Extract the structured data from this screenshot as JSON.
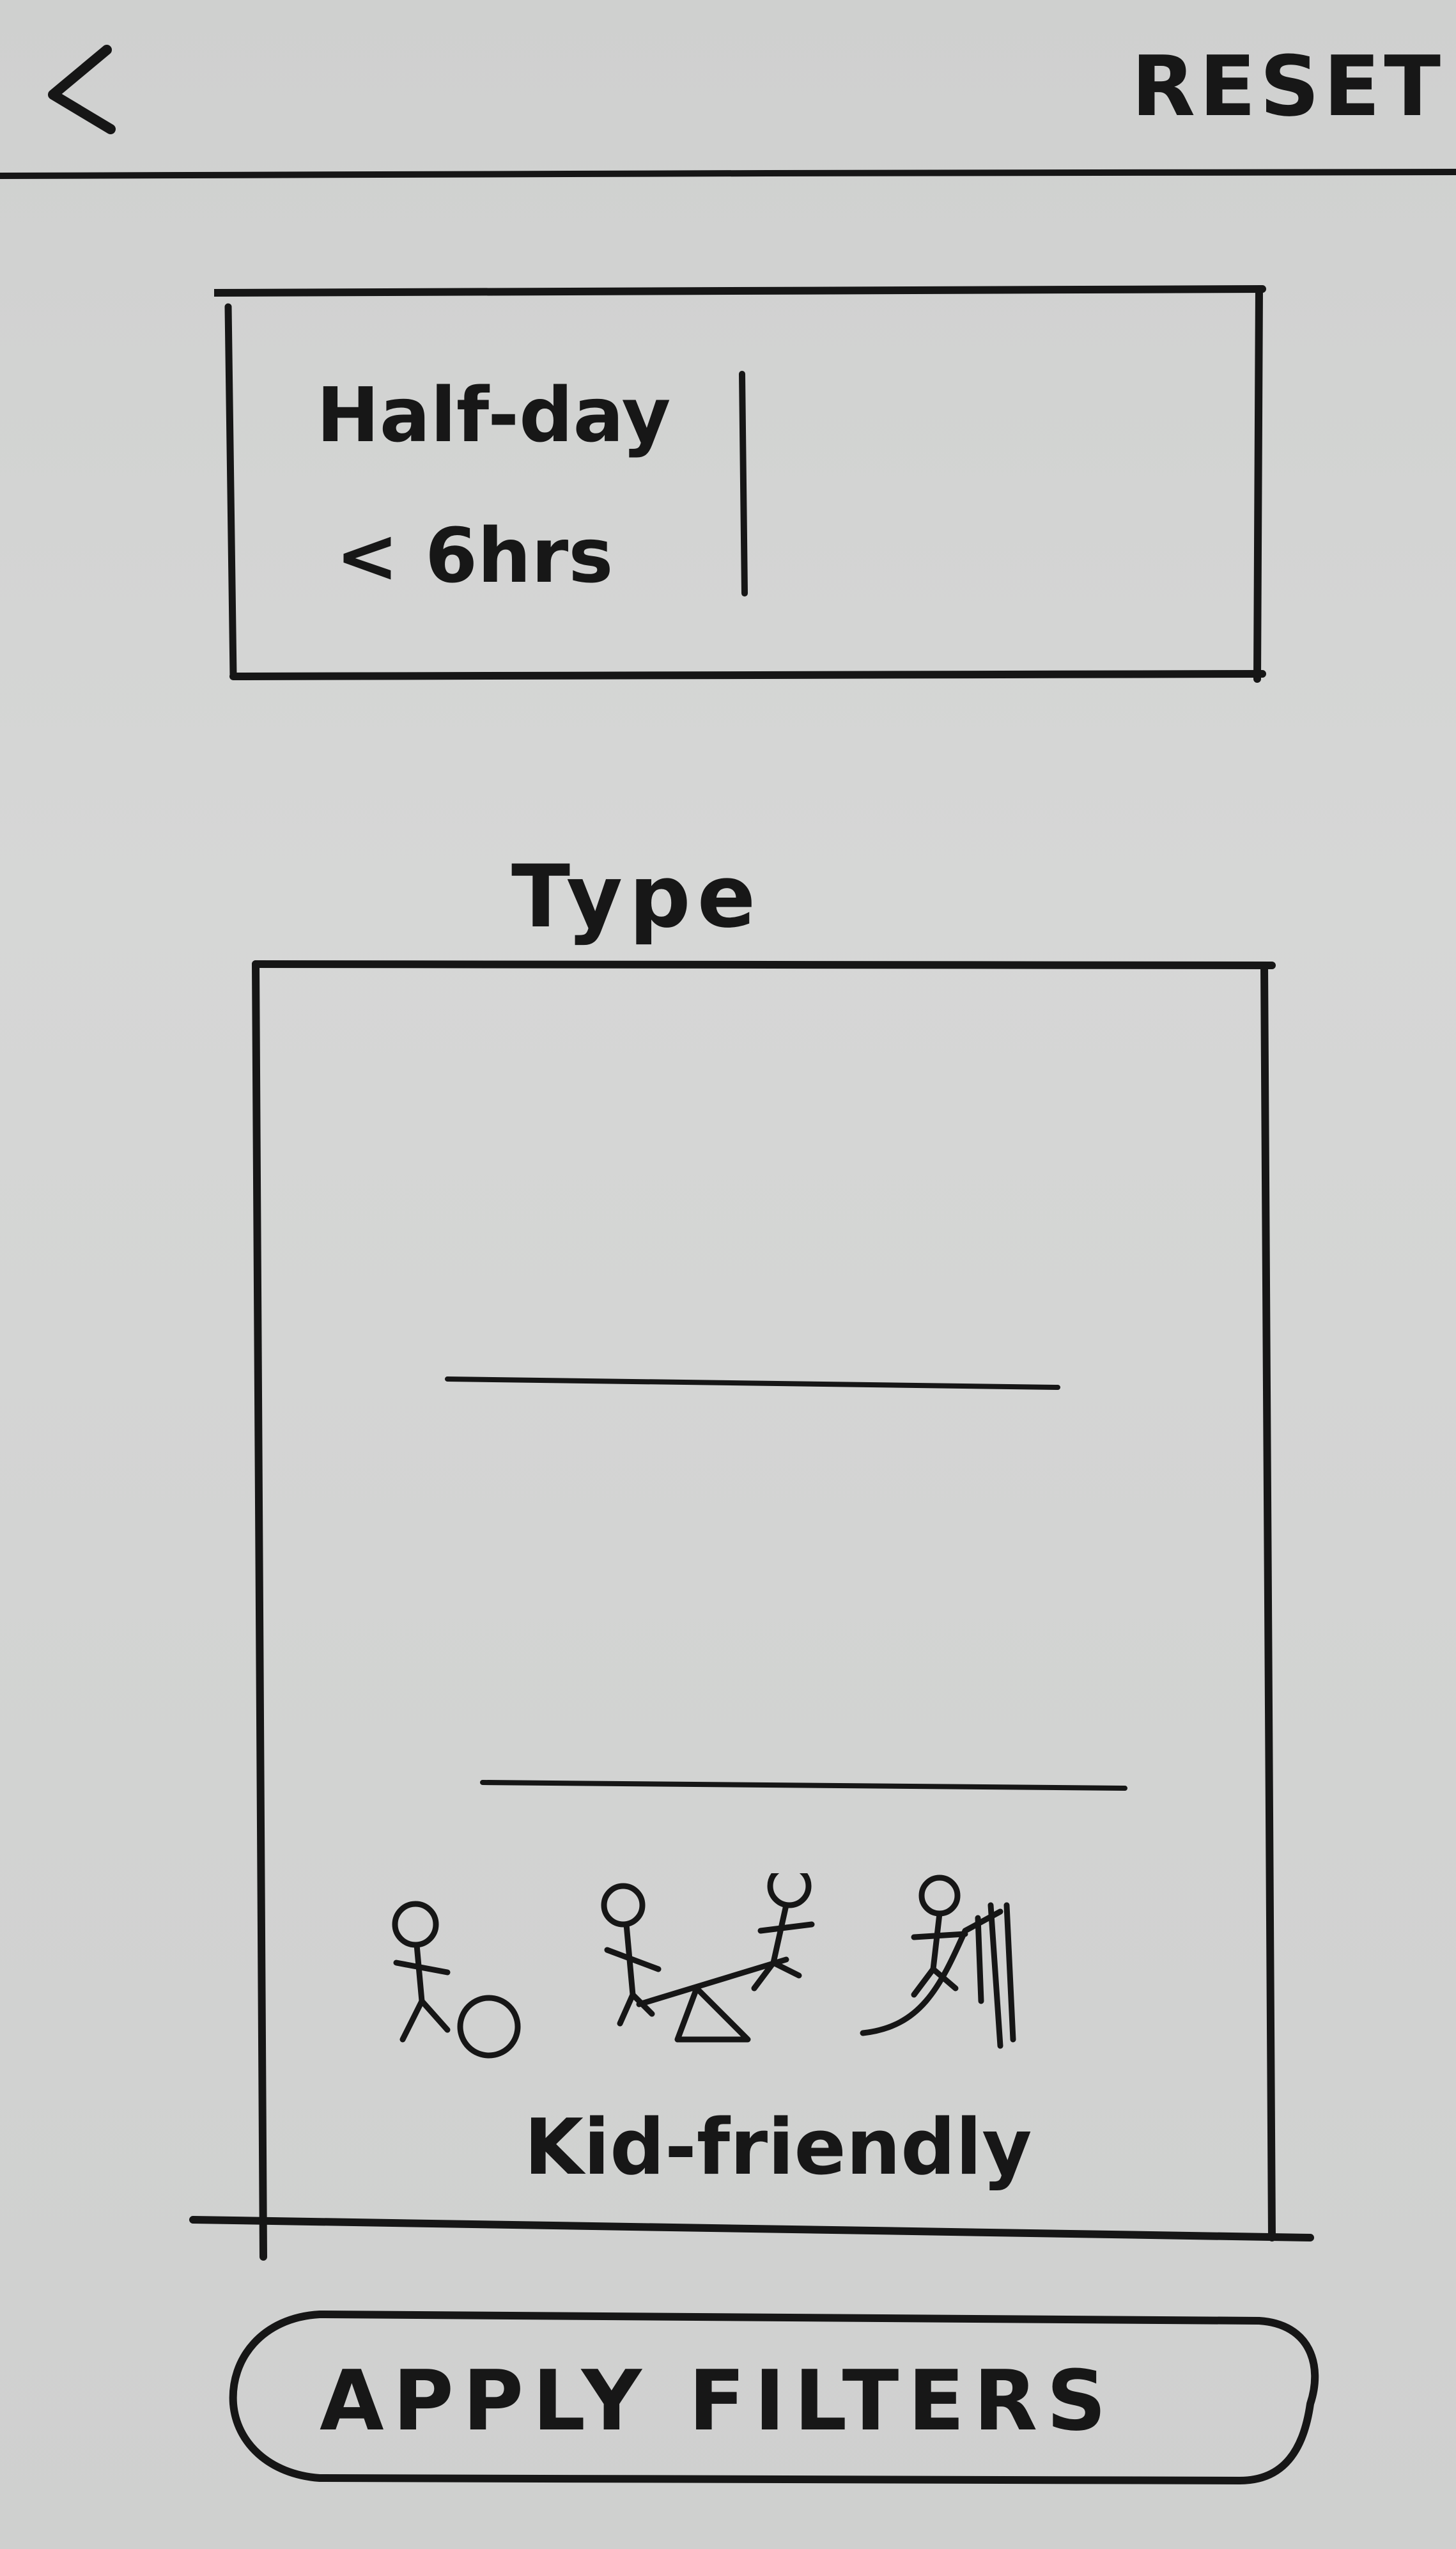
{
  "header": {
    "back_icon": "chevron-left-icon",
    "reset_label": "RESET"
  },
  "duration": {
    "option_title": "Half-day",
    "option_subtitle": "< 6hrs"
  },
  "type_section": {
    "label": "Type",
    "options": [
      {
        "label": ""
      },
      {
        "label": ""
      },
      {
        "label": "Kid-friendly",
        "illustration": "kids-playground-icon"
      }
    ]
  },
  "footer": {
    "apply_label": "APPLY FILTERS"
  }
}
